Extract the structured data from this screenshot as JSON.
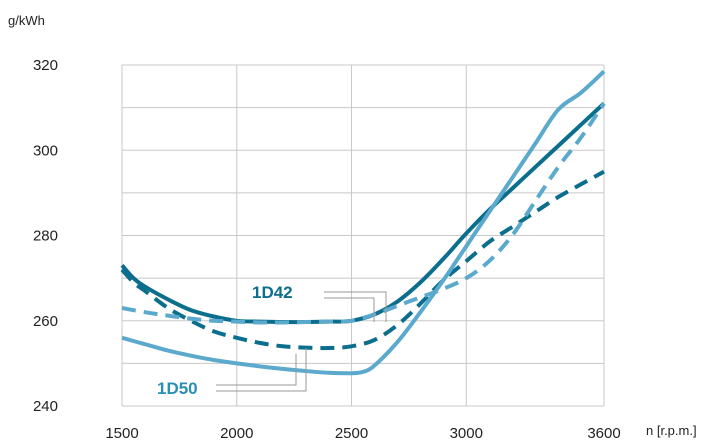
{
  "chart_data": {
    "type": "line",
    "title": "",
    "xlabel": "n [r.p.m.]",
    "ylabel": "g/kWh",
    "xlim": [
      1500,
      3600
    ],
    "ylim": [
      240,
      320
    ],
    "xticks": [
      1500,
      2000,
      2500,
      3000,
      3600
    ],
    "yticks": [
      240,
      260,
      280,
      300,
      320
    ],
    "grid": true,
    "series": [
      {
        "name": "1D42",
        "style": "solid",
        "color": "#0b6e8c",
        "x": [
          1500,
          1550,
          1600,
          1700,
          1800,
          1900,
          2000,
          2100,
          2200,
          2300,
          2400,
          2500,
          2600,
          2700,
          2800,
          2900,
          3000,
          3100,
          3200,
          3300,
          3400,
          3500,
          3600
        ],
        "values": [
          273,
          270,
          268,
          265,
          262.5,
          261,
          260,
          259.8,
          259.7,
          259.7,
          259.8,
          260,
          261.5,
          264.5,
          269,
          274.5,
          280.5,
          286,
          291,
          296,
          301,
          306,
          311
        ]
      },
      {
        "name": "1D42",
        "style": "dashed",
        "color": "#0b6e8c",
        "x": [
          1500,
          1550,
          1600,
          1700,
          1800,
          1900,
          2000,
          2100,
          2200,
          2300,
          2400,
          2500,
          2600,
          2700,
          2800,
          2900,
          3000,
          3100,
          3200,
          3300,
          3400,
          3500,
          3600
        ],
        "values": [
          272,
          269,
          267,
          263,
          260,
          257.5,
          256,
          254.8,
          254,
          253.7,
          253.6,
          254,
          255.5,
          259,
          264,
          269.5,
          274,
          278.5,
          282,
          285.5,
          289,
          292,
          295
        ]
      },
      {
        "name": "1D50",
        "style": "solid",
        "color": "#5ba9cc",
        "x": [
          1500,
          1600,
          1700,
          1800,
          1900,
          2000,
          2100,
          2200,
          2300,
          2400,
          2500,
          2550,
          2600,
          2700,
          2800,
          2900,
          3000,
          3100,
          3200,
          3300,
          3400,
          3500,
          3600
        ],
        "values": [
          256,
          254.5,
          253,
          251.8,
          250.8,
          250,
          249.3,
          248.7,
          248.2,
          247.8,
          247.7,
          248,
          249.5,
          255,
          262,
          269.5,
          277.5,
          285.5,
          293.5,
          301.5,
          309.5,
          313.5,
          318.5
        ]
      },
      {
        "name": "1D50",
        "style": "dashed",
        "color": "#5ba9cc",
        "x": [
          1500,
          1600,
          1700,
          1800,
          1900,
          2000,
          2100,
          2200,
          2300,
          2400,
          2500,
          2600,
          2700,
          2800,
          2900,
          3000,
          3100,
          3200,
          3300,
          3400,
          3500,
          3600
        ],
        "values": [
          263,
          262,
          261.2,
          260.5,
          260,
          259.8,
          259.6,
          259.6,
          259.7,
          259.8,
          260,
          261.5,
          263.5,
          265.5,
          267.5,
          270,
          274,
          280,
          288,
          296,
          303,
          311
        ]
      }
    ],
    "labels": [
      {
        "text": "1D42",
        "color": "#0b6e8c"
      },
      {
        "text": "1D50",
        "color": "#2a8fb8"
      }
    ]
  }
}
